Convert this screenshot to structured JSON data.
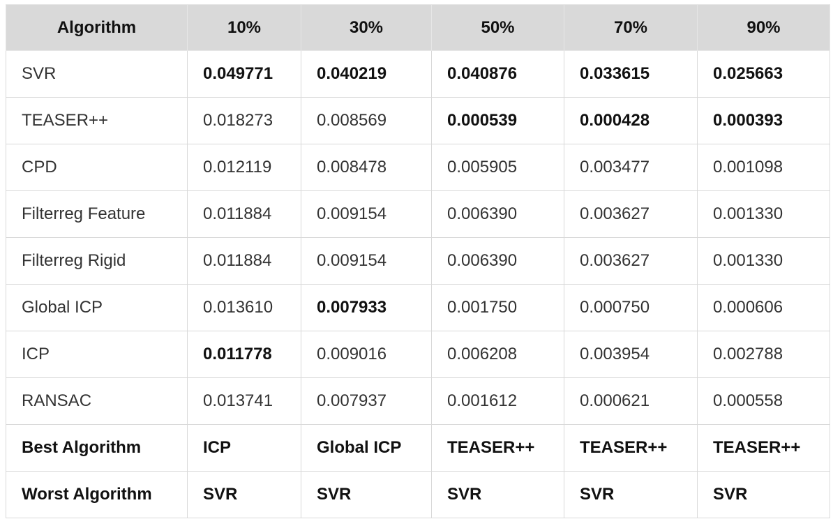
{
  "headers": [
    "Algorithm",
    "10%",
    "30%",
    "50%",
    "70%",
    "90%"
  ],
  "rows": [
    {
      "label": "SVR",
      "cells": [
        {
          "v": "0.049771",
          "bold": true
        },
        {
          "v": "0.040219",
          "bold": true
        },
        {
          "v": "0.040876",
          "bold": true
        },
        {
          "v": "0.033615",
          "bold": true
        },
        {
          "v": "0.025663",
          "bold": true
        }
      ]
    },
    {
      "label": "TEASER++",
      "cells": [
        {
          "v": "0.018273",
          "bold": false
        },
        {
          "v": "0.008569",
          "bold": false
        },
        {
          "v": "0.000539",
          "bold": true
        },
        {
          "v": "0.000428",
          "bold": true
        },
        {
          "v": "0.000393",
          "bold": true
        }
      ]
    },
    {
      "label": "CPD",
      "cells": [
        {
          "v": "0.012119",
          "bold": false
        },
        {
          "v": "0.008478",
          "bold": false
        },
        {
          "v": "0.005905",
          "bold": false
        },
        {
          "v": "0.003477",
          "bold": false
        },
        {
          "v": "0.001098",
          "bold": false
        }
      ]
    },
    {
      "label": "Filterreg Feature",
      "cells": [
        {
          "v": "0.011884",
          "bold": false
        },
        {
          "v": "0.009154",
          "bold": false
        },
        {
          "v": "0.006390",
          "bold": false
        },
        {
          "v": "0.003627",
          "bold": false
        },
        {
          "v": "0.001330",
          "bold": false
        }
      ]
    },
    {
      "label": "Filterreg Rigid",
      "cells": [
        {
          "v": "0.011884",
          "bold": false
        },
        {
          "v": "0.009154",
          "bold": false
        },
        {
          "v": "0.006390",
          "bold": false
        },
        {
          "v": "0.003627",
          "bold": false
        },
        {
          "v": "0.001330",
          "bold": false
        }
      ]
    },
    {
      "label": "Global ICP",
      "cells": [
        {
          "v": "0.013610",
          "bold": false
        },
        {
          "v": "0.007933",
          "bold": true
        },
        {
          "v": "0.001750",
          "bold": false
        },
        {
          "v": "0.000750",
          "bold": false
        },
        {
          "v": "0.000606",
          "bold": false
        }
      ]
    },
    {
      "label": "ICP",
      "cells": [
        {
          "v": "0.011778",
          "bold": true
        },
        {
          "v": "0.009016",
          "bold": false
        },
        {
          "v": "0.006208",
          "bold": false
        },
        {
          "v": "0.003954",
          "bold": false
        },
        {
          "v": "0.002788",
          "bold": false
        }
      ]
    },
    {
      "label": "RANSAC",
      "cells": [
        {
          "v": "0.013741",
          "bold": false
        },
        {
          "v": "0.007937",
          "bold": false
        },
        {
          "v": "0.001612",
          "bold": false
        },
        {
          "v": "0.000621",
          "bold": false
        },
        {
          "v": "0.000558",
          "bold": false
        }
      ]
    }
  ],
  "summary": [
    {
      "label": "Best Algorithm",
      "cells": [
        "ICP",
        "Global ICP",
        "TEASER++",
        "TEASER++",
        "TEASER++"
      ]
    },
    {
      "label": "Worst Algorithm",
      "cells": [
        "SVR",
        "SVR",
        "SVR",
        "SVR",
        "SVR"
      ]
    }
  ],
  "colors": {
    "header_bg": "#d9d9d9",
    "border": "#d9d9d9",
    "text": "#333333",
    "bold_text": "#111111"
  }
}
